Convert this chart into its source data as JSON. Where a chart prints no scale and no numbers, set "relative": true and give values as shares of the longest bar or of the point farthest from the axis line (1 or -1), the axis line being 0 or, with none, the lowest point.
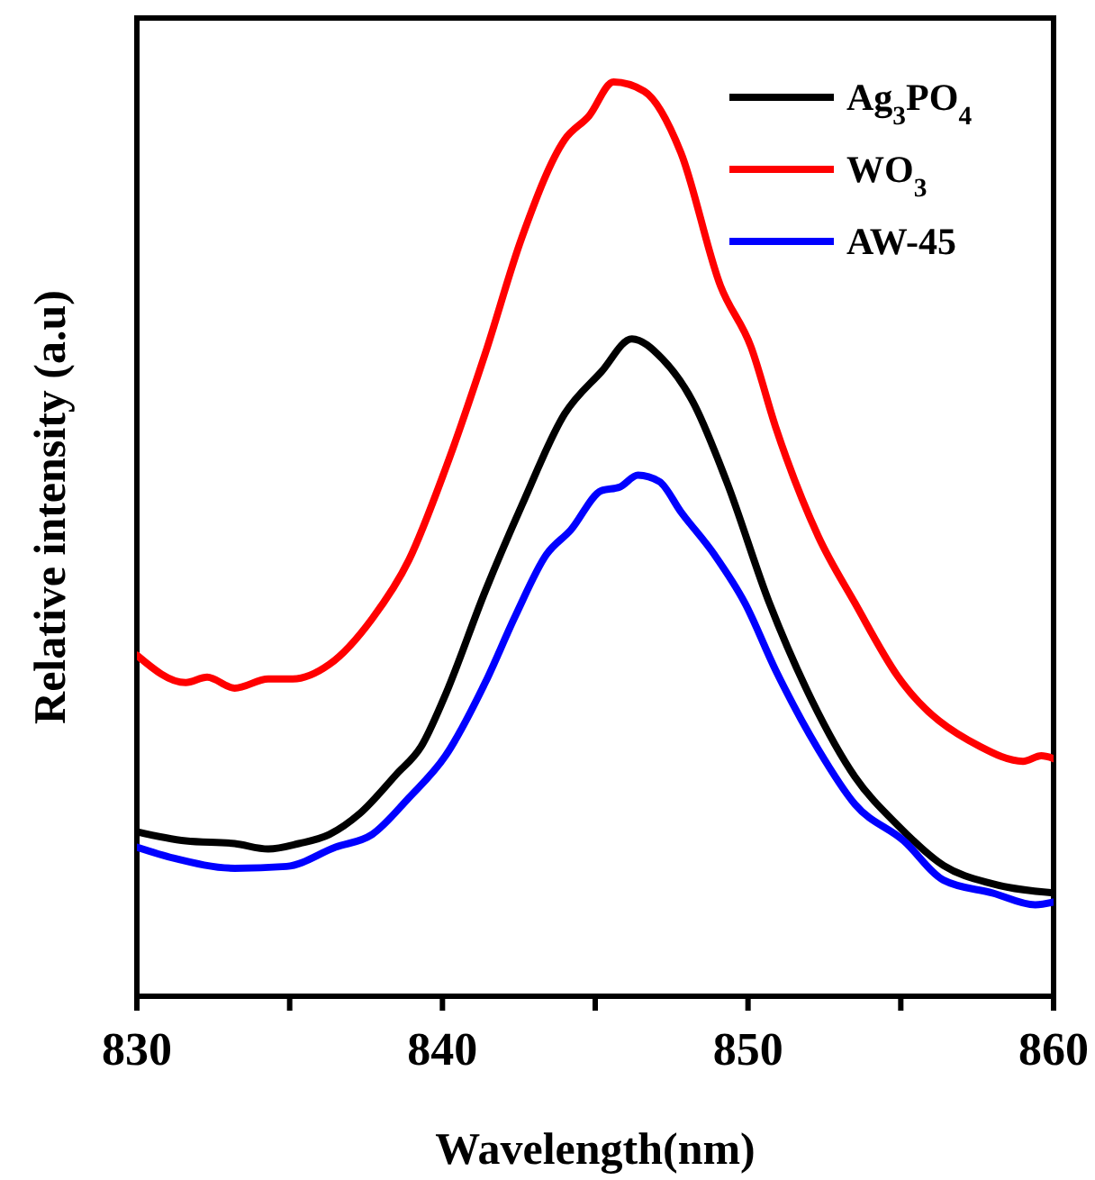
{
  "chart_data": {
    "type": "line",
    "xlabel": "Wavelength(nm)",
    "ylabel": "Relative intensity (a.u)",
    "relative": true,
    "xlim": [
      830,
      860
    ],
    "xticks": [
      830,
      {
        "value": 835,
        "label": null
      },
      840,
      {
        "value": 845,
        "label": null
      },
      850,
      {
        "value": 855,
        "label": null
      },
      860
    ],
    "legend": "top right",
    "line_style": "solid",
    "marker": "none",
    "grid": false,
    "series": [
      {
        "name": "Ag$_{3}$PO$_{4}$",
        "color": "#000000",
        "x": [
          830,
          831.6,
          833.2,
          834.3,
          835.3,
          836.3,
          837.3,
          838.5,
          839.3,
          840.1,
          841.4,
          842.6,
          844.0,
          845.2,
          846.2,
          847.2,
          848.2,
          849.3,
          850.7,
          852.1,
          853.5,
          854.9,
          856.4,
          858.0,
          860
        ],
        "values": [
          0.18,
          0.17,
          0.167,
          0.161,
          0.167,
          0.177,
          0.2,
          0.243,
          0.273,
          0.33,
          0.443,
          0.537,
          0.637,
          0.683,
          0.719,
          0.697,
          0.65,
          0.563,
          0.43,
          0.323,
          0.24,
          0.187,
          0.143,
          0.123,
          0.113
        ]
      },
      {
        "name": "WO$_{3}$",
        "color": "#ff0000",
        "x": [
          830,
          831.6,
          832.3,
          833.2,
          834.3,
          835.1,
          836.3,
          837.7,
          838.9,
          840.1,
          841.4,
          842.6,
          844.0,
          844.8,
          845.6,
          846.6,
          847.8,
          849.1,
          850.1,
          850.9,
          852.3,
          853.5,
          854.9,
          857.6,
          859.0,
          859.6,
          860
        ],
        "values": [
          0.373,
          0.343,
          0.349,
          0.337,
          0.347,
          0.347,
          0.363,
          0.413,
          0.477,
          0.577,
          0.703,
          0.83,
          0.937,
          0.963,
          1.0,
          0.99,
          0.923,
          0.777,
          0.71,
          0.623,
          0.503,
          0.43,
          0.35,
          0.273,
          0.257,
          0.263,
          0.26
        ]
      },
      {
        "name": "AW-45",
        "color": "#0000ff",
        "x": [
          830,
          831.2,
          833.2,
          834.9,
          836.5,
          837.7,
          838.9,
          840.1,
          841.4,
          842.4,
          843.4,
          844.2,
          845.2,
          845.8,
          846.4,
          847.1,
          847.8,
          848.9,
          849.9,
          850.9,
          852.3,
          853.5,
          855.1,
          856.4,
          858.0,
          859.4,
          860
        ],
        "values": [
          0.163,
          0.151,
          0.14,
          0.142,
          0.163,
          0.177,
          0.217,
          0.263,
          0.343,
          0.417,
          0.483,
          0.51,
          0.553,
          0.557,
          0.57,
          0.563,
          0.53,
          0.483,
          0.43,
          0.357,
          0.27,
          0.21,
          0.17,
          0.127,
          0.113,
          0.1,
          0.103
        ]
      }
    ]
  }
}
